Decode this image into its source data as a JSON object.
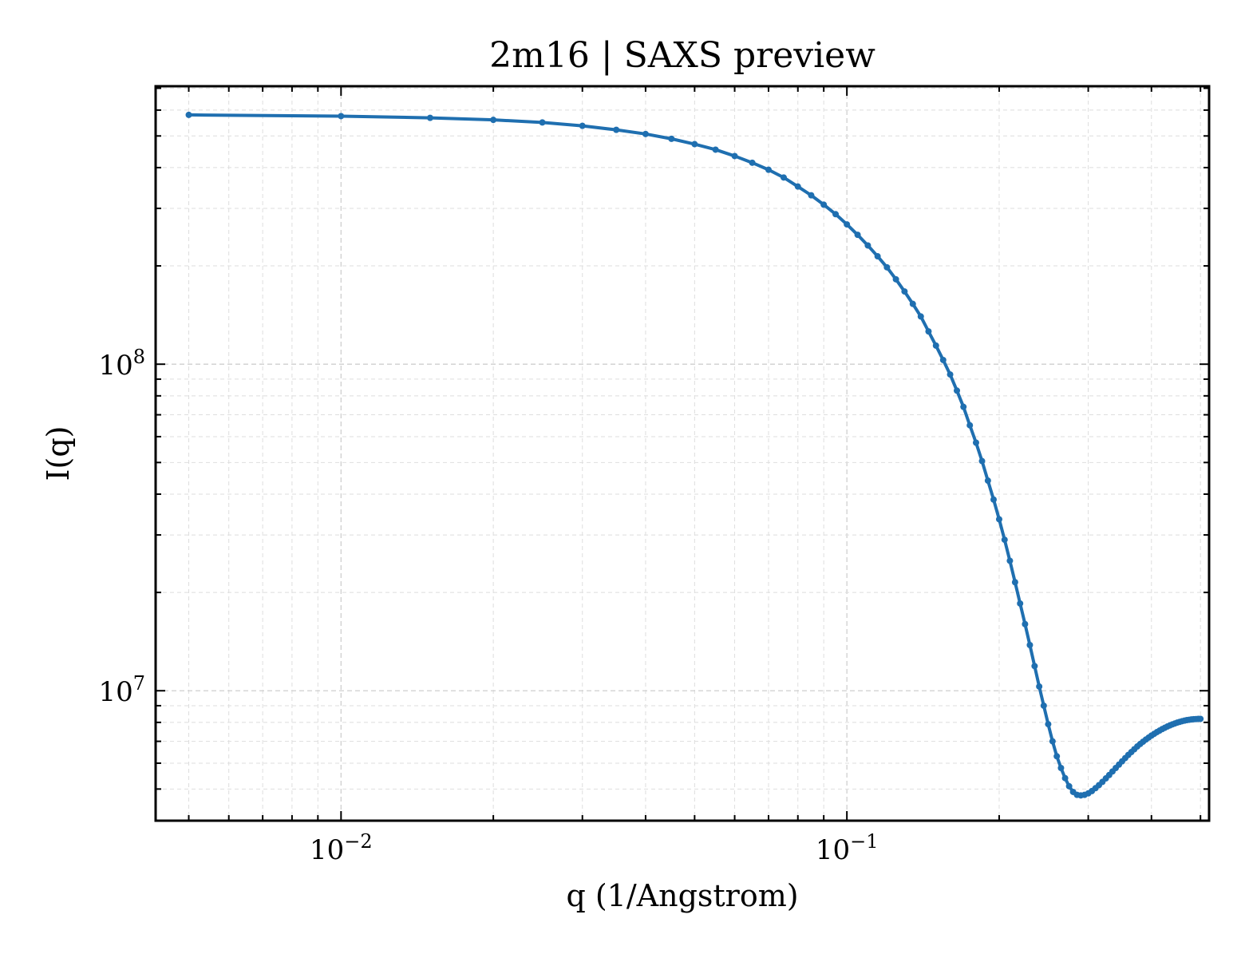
{
  "chart_data": {
    "type": "line",
    "title": "2m16 | SAXS preview",
    "xlabel": "q (1/Angstrom)",
    "ylabel": "I(q)",
    "xscale": "log",
    "yscale": "log",
    "xlim": [
      0.0043,
      0.52
    ],
    "ylim": [
      4000000,
      710000000
    ],
    "grid": true,
    "legend": "none",
    "color": "#1f6fb0",
    "x_ticks": [
      {
        "value": 0.01,
        "base": "10",
        "exp": "−2"
      },
      {
        "value": 0.1,
        "base": "10",
        "exp": "−1"
      }
    ],
    "y_ticks": [
      {
        "value": 10000000,
        "base": "10",
        "exp": "7"
      },
      {
        "value": 100000000,
        "base": "10",
        "exp": "8"
      }
    ],
    "series": [
      {
        "x": [
          0.005,
          0.01,
          0.015,
          0.02,
          0.025,
          0.03,
          0.035,
          0.04,
          0.045,
          0.05,
          0.055,
          0.06,
          0.065,
          0.07,
          0.075,
          0.08,
          0.085,
          0.09,
          0.095,
          0.1,
          0.105,
          0.11,
          0.115,
          0.12,
          0.125,
          0.13,
          0.135,
          0.14,
          0.145,
          0.15,
          0.155,
          0.16,
          0.165,
          0.17,
          0.175,
          0.18,
          0.185,
          0.19,
          0.195,
          0.2,
          0.205,
          0.21,
          0.215,
          0.22,
          0.225,
          0.23,
          0.235,
          0.24,
          0.245,
          0.25,
          0.255,
          0.26,
          0.265,
          0.27,
          0.275,
          0.28,
          0.285,
          0.29,
          0.295,
          0.3,
          0.305,
          0.31,
          0.315,
          0.32,
          0.325,
          0.33,
          0.335,
          0.34,
          0.345,
          0.35,
          0.355,
          0.36,
          0.365,
          0.37,
          0.375,
          0.38,
          0.385,
          0.39,
          0.395,
          0.4,
          0.405,
          0.41,
          0.415,
          0.42,
          0.425,
          0.43,
          0.435,
          0.44,
          0.445,
          0.45,
          0.455,
          0.46,
          0.465,
          0.47,
          0.475,
          0.48,
          0.485,
          0.49,
          0.495,
          0.5
        ],
        "y": [
          580000000,
          575000000,
          568000000,
          560000000,
          550000000,
          537000000,
          522000000,
          507000000,
          490000000,
          472000000,
          454000000,
          434000000,
          414000000,
          394000000,
          373000000,
          350000000,
          329000000,
          308000000,
          288000000,
          268000000,
          249000000,
          231000000,
          214000000,
          198000000,
          182000000,
          167000000,
          153000000,
          140000000,
          126000000,
          114000000,
          103000000,
          93000000,
          83000000,
          74000000,
          65000000,
          57500000,
          50500000,
          44000000,
          38500000,
          33500000,
          29000000,
          25000000,
          21500000,
          18500000,
          16000000,
          13800000,
          11900000,
          10300000,
          9000000,
          7900000,
          7000000,
          6300000,
          5800000,
          5400000,
          5100000,
          4900000,
          4800000,
          4780000,
          4800000,
          4850000,
          4930000,
          5030000,
          5140000,
          5260000,
          5390000,
          5520000,
          5660000,
          5800000,
          5940000,
          6080000,
          6220000,
          6360000,
          6490000,
          6620000,
          6750000,
          6870000,
          6980000,
          7090000,
          7190000,
          7290000,
          7380000,
          7470000,
          7550000,
          7630000,
          7700000,
          7770000,
          7830000,
          7890000,
          7940000,
          7990000,
          8030000,
          8070000,
          8100000,
          8130000,
          8150000,
          8170000,
          8180000,
          8190000,
          8200000,
          8200000
        ]
      }
    ]
  }
}
